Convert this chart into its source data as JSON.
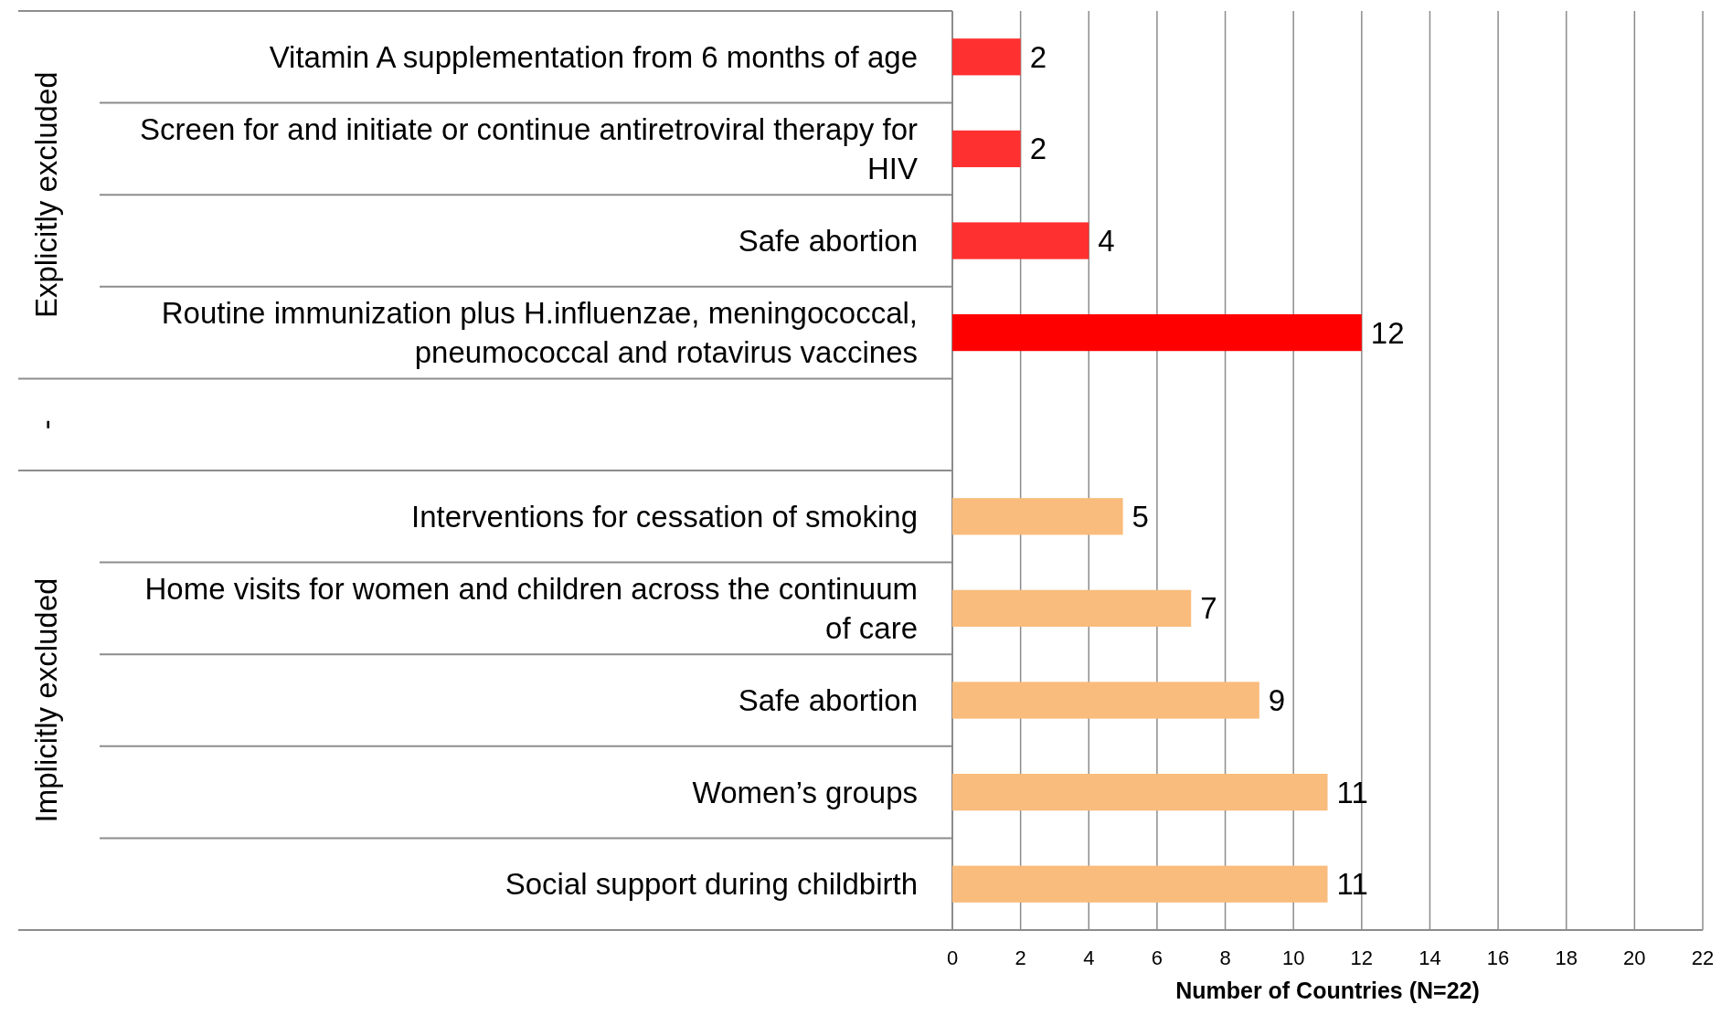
{
  "chart_data": {
    "type": "bar",
    "orientation": "horizontal",
    "categories": [
      "Vitamin A supplementation from 6 months of age",
      "Screen for and initiate or continue antiretroviral therapy for HIV",
      "Safe abortion",
      "Routine immunization plus H.influenzae, meningococcal, pneumococcal and rotavirus vaccines",
      null,
      "Interventions for cessation of smoking",
      "Home visits for women and children across the continuum of care",
      "Safe abortion",
      "Women’s groups",
      "Social support during childbirth"
    ],
    "values": [
      2,
      2,
      4,
      12,
      null,
      5,
      7,
      9,
      11,
      11
    ],
    "colors": [
      "#ff3030",
      "#ff3030",
      "#ff3030",
      "#ff0000",
      null,
      "#f9bc7c",
      "#f9bc7c",
      "#f9bc7c",
      "#f9bc7c",
      "#f9bc7c"
    ],
    "xlim": [
      0,
      22
    ],
    "xticks": [
      0,
      2,
      4,
      6,
      8,
      10,
      12,
      14,
      16,
      18,
      20,
      22
    ],
    "xlabel": "Number of Countries (N=22)",
    "annotations": [
      "Explicitly excluded",
      "-",
      "Implicitly excluded"
    ],
    "grid": "x",
    "data_labels": true
  }
}
